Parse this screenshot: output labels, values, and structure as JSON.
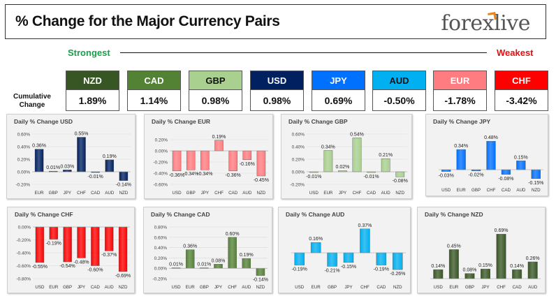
{
  "header": {
    "title": "% Change for the Major Currency Pairs",
    "logo": "forexlive"
  },
  "ranking": {
    "strongest_label": "Strongest",
    "weakest_label": "Weakest",
    "row_label": "Cumulative Change",
    "currencies": [
      {
        "code": "NZD",
        "value": "1.89%",
        "color": "#375623",
        "text_color": "#ffffff"
      },
      {
        "code": "CAD",
        "value": "1.14%",
        "color": "#548235",
        "text_color": "#ffffff"
      },
      {
        "code": "GBP",
        "value": "0.98%",
        "color": "#a9d08e",
        "text_color": "#111111"
      },
      {
        "code": "USD",
        "value": "0.98%",
        "color": "#002060",
        "text_color": "#ffffff"
      },
      {
        "code": "JPY",
        "value": "0.69%",
        "color": "#0070ff",
        "text_color": "#ffffff"
      },
      {
        "code": "AUD",
        "value": "-0.50%",
        "color": "#00b0f0",
        "text_color": "#111111"
      },
      {
        "code": "EUR",
        "value": "-1.78%",
        "color": "#ff7c80",
        "text_color": "#ffffff"
      },
      {
        "code": "CHF",
        "value": "-3.42%",
        "color": "#ff0000",
        "text_color": "#ffffff"
      }
    ]
  },
  "chart_data": [
    {
      "type": "bar",
      "title": "Daily % Change USD",
      "color": "#002060",
      "categories": [
        "EUR",
        "GBP",
        "JPY",
        "CHF",
        "CAD",
        "AUD",
        "NZD"
      ],
      "values": [
        0.36,
        0.01,
        0.03,
        0.55,
        -0.01,
        0.19,
        -0.14
      ],
      "labels": [
        "0.36%",
        "0.01%",
        "0.03%",
        "0.55%",
        "-0.01%",
        "0.19%",
        "-0.14%"
      ],
      "ylim": [
        -0.2,
        0.6
      ],
      "yticks": [
        "-0.20%",
        "0.00%",
        "0.20%",
        "0.40%",
        "0.60%"
      ],
      "ytick_values": [
        -0.2,
        0,
        0.2,
        0.4,
        0.6
      ]
    },
    {
      "type": "bar",
      "title": "Daily % Change EUR",
      "color": "#ff7c80",
      "categories": [
        "USD",
        "GBP",
        "JPY",
        "CHF",
        "CAD",
        "AUD",
        "NZD"
      ],
      "values": [
        -0.36,
        -0.34,
        -0.34,
        0.19,
        -0.36,
        -0.16,
        -0.45
      ],
      "labels": [
        "-0.36%",
        "-0.34%",
        "-0.34%",
        "0.19%",
        "-0.36%",
        "-0.16%",
        "-0.45%"
      ],
      "ylim": [
        -0.6,
        0.3
      ],
      "yticks": [
        "-0.60%",
        "-0.40%",
        "-0.20%",
        "0.00%",
        "0.20%"
      ],
      "ytick_values": [
        -0.6,
        -0.4,
        -0.2,
        0,
        0.2
      ]
    },
    {
      "type": "bar",
      "title": "Daily % Change GBP",
      "color": "#a9d08e",
      "categories": [
        "USD",
        "EUR",
        "JPY",
        "CHF",
        "CAD",
        "AUD",
        "NZD"
      ],
      "values": [
        -0.01,
        0.34,
        0.02,
        0.54,
        -0.01,
        0.21,
        -0.08
      ],
      "labels": [
        "-0.01%",
        "0.34%",
        "0.02%",
        "0.54%",
        "-0.01%",
        "0.21%",
        "-0.08%"
      ],
      "ylim": [
        -0.2,
        0.6
      ],
      "yticks": [
        "-0.20%",
        "0.00%",
        "0.20%",
        "0.40%",
        "0.60%"
      ],
      "ytick_values": [
        -0.2,
        0,
        0.2,
        0.4,
        0.6
      ]
    },
    {
      "type": "bar",
      "title": "Daily % Change JPY",
      "color": "#0070ff",
      "categories": [
        "USD",
        "EUR",
        "GBP",
        "CHF",
        "CAD",
        "AUD",
        "NZD"
      ],
      "values": [
        -0.03,
        0.34,
        -0.02,
        0.48,
        -0.08,
        0.15,
        -0.15
      ],
      "labels": [
        "-0.03%",
        "0.34%",
        "-0.02%",
        "0.48%",
        "-0.08%",
        "0.15%",
        "-0.15%"
      ],
      "ylim": [
        -0.2,
        0.6
      ],
      "yticks": [],
      "ytick_values": []
    },
    {
      "type": "bar",
      "title": "Daily % Change CHF",
      "color": "#ff0000",
      "categories": [
        "USD",
        "EUR",
        "GBP",
        "JPY",
        "CAD",
        "AUD",
        "NZD"
      ],
      "values": [
        -0.55,
        -0.19,
        -0.54,
        -0.48,
        -0.6,
        -0.37,
        -0.69
      ],
      "labels": [
        "-0.55%",
        "-0.19%",
        "-0.54%",
        "-0.48%",
        "-0.60%",
        "-0.37%",
        "-0.69%"
      ],
      "ylim": [
        -0.8,
        0.0
      ],
      "yticks": [
        "-0.80%",
        "-0.60%",
        "-0.40%",
        "-0.20%",
        "0.00%"
      ],
      "ytick_values": [
        -0.8,
        -0.6,
        -0.4,
        -0.2,
        0
      ]
    },
    {
      "type": "bar",
      "title": "Daily % Change CAD",
      "color": "#548235",
      "categories": [
        "USD",
        "EUR",
        "GBP",
        "JPY",
        "CHF",
        "AUD",
        "NZD"
      ],
      "values": [
        0.01,
        0.36,
        0.01,
        0.08,
        0.6,
        0.19,
        -0.14
      ],
      "labels": [
        "0.01%",
        "0.36%",
        "0.01%",
        "0.08%",
        "0.60%",
        "0.19%",
        "-0.14%"
      ],
      "ylim": [
        -0.2,
        0.8
      ],
      "yticks": [
        "-0.20%",
        "0.00%",
        "0.20%",
        "0.40%",
        "0.60%",
        "0.80%"
      ],
      "ytick_values": [
        -0.2,
        0,
        0.2,
        0.4,
        0.6,
        0.8
      ]
    },
    {
      "type": "bar",
      "title": "Daily % Change AUD",
      "color": "#00b0f0",
      "categories": [
        "USD",
        "EUR",
        "GBP",
        "JPY",
        "CHF",
        "CAD",
        "NZD"
      ],
      "values": [
        -0.19,
        0.16,
        -0.21,
        -0.15,
        0.37,
        -0.19,
        -0.26
      ],
      "labels": [
        "-0.19%",
        "0.16%",
        "-0.21%",
        "-0.15%",
        "0.37%",
        "-0.19%",
        "-0.26%"
      ],
      "ylim": [
        -0.4,
        0.4
      ],
      "yticks": [],
      "ytick_values": []
    },
    {
      "type": "bar",
      "title": "Daily % Change NZD",
      "color": "#375623",
      "categories": [
        "USD",
        "EUR",
        "GBP",
        "JPY",
        "CHF",
        "CAD",
        "AUD"
      ],
      "values": [
        0.14,
        0.45,
        0.08,
        0.15,
        0.69,
        0.14,
        0.26
      ],
      "labels": [
        "0.14%",
        "0.45%",
        "0.08%",
        "0.15%",
        "0.69%",
        "0.14%",
        "0.26%"
      ],
      "ylim": [
        0,
        0.8
      ],
      "yticks": [],
      "ytick_values": []
    }
  ]
}
